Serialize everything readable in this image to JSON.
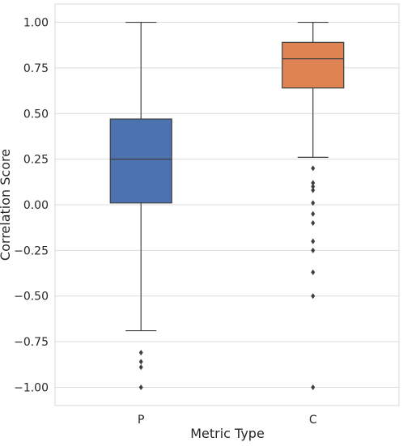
{
  "chart_data": {
    "type": "box",
    "categories": [
      "P",
      "C"
    ],
    "xlabel": "Metric Type",
    "ylabel": "Correlation Score",
    "ylim": [
      -1.1,
      1.1
    ],
    "yticks": [
      1.0,
      0.75,
      0.5,
      0.25,
      0.0,
      -0.25,
      -0.5,
      -0.75,
      -1.0
    ],
    "ytick_labels": [
      "1.00",
      "0.75",
      "0.50",
      "0.25",
      "0.00",
      "−0.25",
      "−0.50",
      "−0.75",
      "−1.00"
    ],
    "grid": true,
    "boxes": [
      {
        "category": "P",
        "color": "#4c72b0",
        "whisker_low": -0.69,
        "q1": 0.01,
        "median": 0.25,
        "q3": 0.47,
        "whisker_high": 1.0,
        "outliers": [
          -0.81,
          -0.86,
          -0.89,
          -1.0
        ]
      },
      {
        "category": "C",
        "color": "#dd8452",
        "whisker_low": 0.26,
        "q1": 0.64,
        "median": 0.8,
        "q3": 0.89,
        "whisker_high": 1.0,
        "outliers": [
          0.2,
          0.12,
          0.1,
          0.08,
          0.01,
          -0.05,
          -0.1,
          -0.2,
          -0.25,
          -0.37,
          -0.5,
          -1.0
        ]
      }
    ]
  }
}
